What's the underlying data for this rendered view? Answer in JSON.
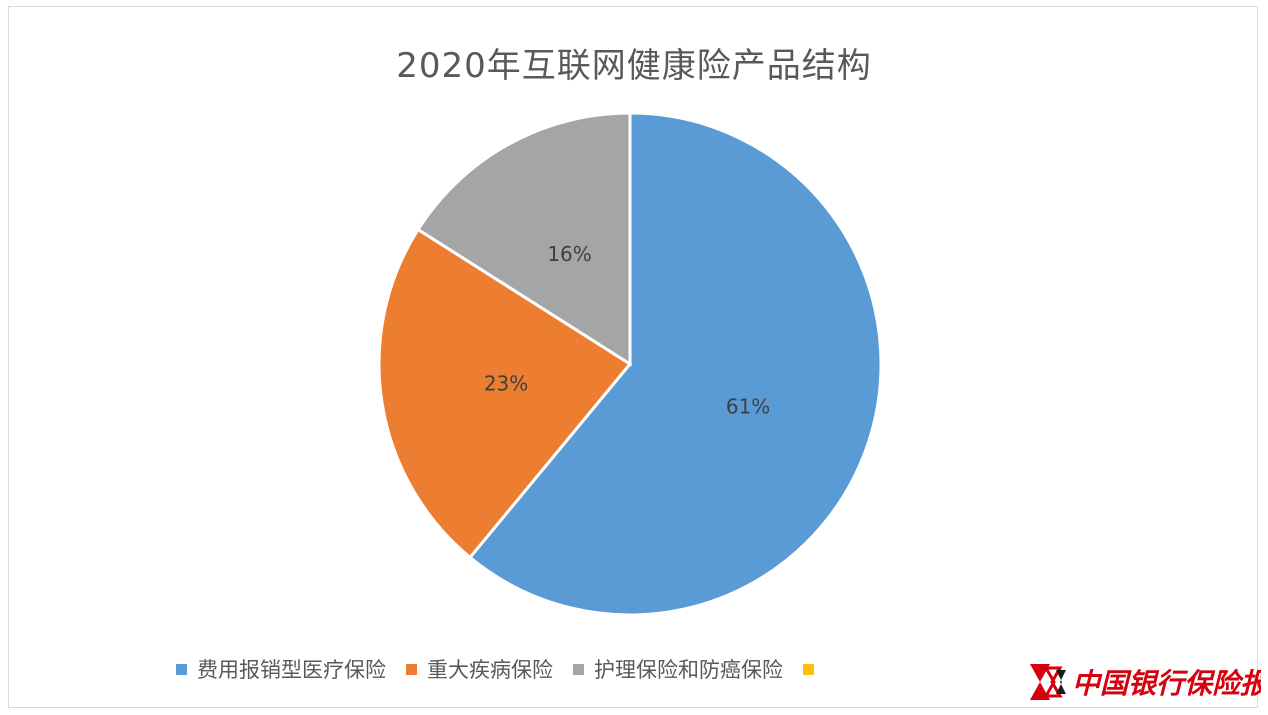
{
  "chart_data": {
    "type": "pie",
    "title": "2020年互联网健康险产品结构",
    "slices": [
      {
        "label": "费用报销型医疗保险",
        "value": 61,
        "data_label": "61%",
        "color": "#5b9bd5"
      },
      {
        "label": "重大疾病保险",
        "value": 23,
        "data_label": "23%",
        "color": "#ed7d31"
      },
      {
        "label": "护理保险和防癌保险",
        "value": 16,
        "data_label": "16%",
        "color": "#a5a5a5"
      },
      {
        "label": "",
        "value": 0,
        "data_label": "",
        "color": "#ffc000"
      }
    ],
    "start_angle": "12 o'clock",
    "direction": "clockwise",
    "legend_position": "bottom"
  },
  "watermark": {
    "text": "中国银行保险报",
    "logo_icon": "double-chevron-logo-icon",
    "color": "#d7000f"
  }
}
